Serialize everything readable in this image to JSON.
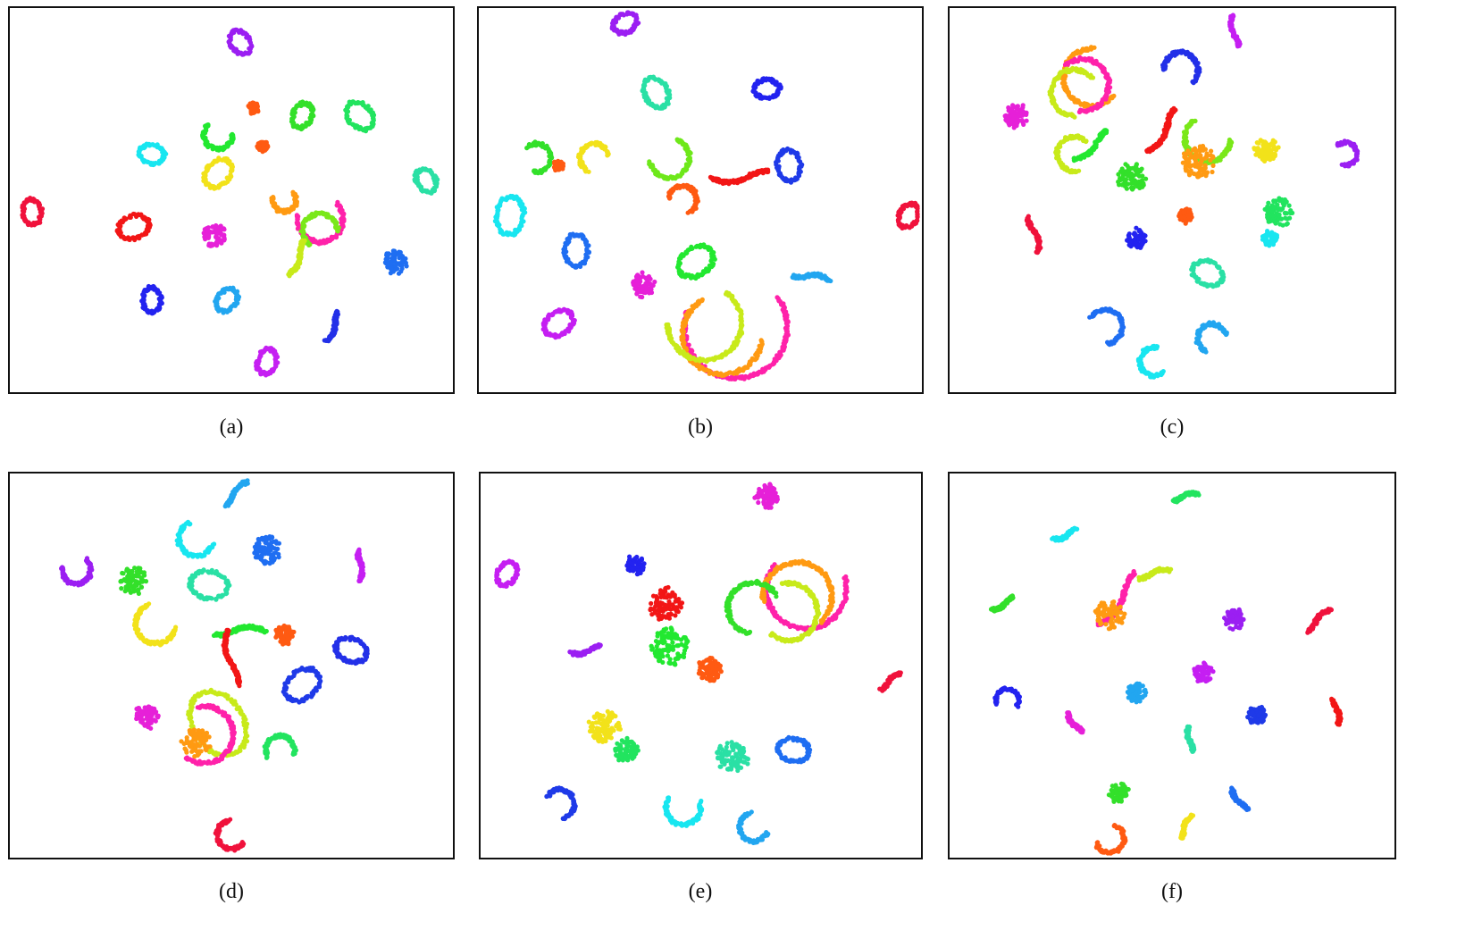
{
  "figure": {
    "captions": [
      "(a)",
      "(b)",
      "(c)",
      "(d)",
      "(e)",
      "(f)"
    ]
  },
  "chart_data": [
    {
      "type": "scatter",
      "label": "(a)",
      "xlim": [
        0,
        100
      ],
      "ylim": [
        0,
        100
      ],
      "grid": false,
      "clusters": [
        {
          "color": "#9b1ff2",
          "x": 52,
          "y": 91,
          "shape": "ring",
          "size": 4
        },
        {
          "color": "#22e45f",
          "x": 79,
          "y": 72,
          "shape": "ring",
          "size": 5
        },
        {
          "color": "#33e02a",
          "x": 66,
          "y": 72,
          "shape": "ring",
          "size": 4
        },
        {
          "color": "#22e830",
          "x": 47,
          "y": 67,
          "shape": "arc",
          "size": 5
        },
        {
          "color": "#ff5a12",
          "x": 55,
          "y": 74,
          "shape": "blob",
          "size": 2
        },
        {
          "color": "#ff5a12",
          "x": 57,
          "y": 64,
          "shape": "blob",
          "size": 2
        },
        {
          "color": "#18e6f0",
          "x": 32,
          "y": 62,
          "shape": "ring",
          "size": 4
        },
        {
          "color": "#f2e21a",
          "x": 47,
          "y": 57,
          "shape": "ring",
          "size": 5
        },
        {
          "color": "#2ae0a5",
          "x": 94,
          "y": 55,
          "shape": "ring",
          "size": 4
        },
        {
          "color": "#f0123c",
          "x": 5,
          "y": 47,
          "shape": "ring",
          "size": 4
        },
        {
          "color": "#f21616",
          "x": 28,
          "y": 43,
          "shape": "ring",
          "size": 5
        },
        {
          "color": "#ff9a12",
          "x": 62,
          "y": 50,
          "shape": "arc",
          "size": 4
        },
        {
          "color": "#ff22aa",
          "x": 70,
          "y": 45,
          "shape": "arc",
          "size": 8
        },
        {
          "color": "#7ae81a",
          "x": 70,
          "y": 42,
          "shape": "arc",
          "size": 6
        },
        {
          "color": "#c8ea1a",
          "x": 65,
          "y": 35,
          "shape": "line",
          "size": 6
        },
        {
          "color": "#e620d8",
          "x": 46,
          "y": 41,
          "shape": "blob",
          "size": 5
        },
        {
          "color": "#1f6ef2",
          "x": 87,
          "y": 34,
          "shape": "blob",
          "size": 5
        },
        {
          "color": "#2323f0",
          "x": 32,
          "y": 24,
          "shape": "ring",
          "size": 4
        },
        {
          "color": "#22a6f0",
          "x": 49,
          "y": 24,
          "shape": "ring",
          "size": 4
        },
        {
          "color": "#2330e8",
          "x": 73,
          "y": 17,
          "shape": "line",
          "size": 5
        },
        {
          "color": "#c51ff2",
          "x": 58,
          "y": 8,
          "shape": "ring",
          "size": 4
        }
      ]
    },
    {
      "type": "scatter",
      "label": "(b)",
      "xlim": [
        0,
        100
      ],
      "ylim": [
        0,
        100
      ],
      "grid": false,
      "clusters": [
        {
          "color": "#9b1ff2",
          "x": 33,
          "y": 96,
          "shape": "ring",
          "size": 4
        },
        {
          "color": "#2ae0a5",
          "x": 40,
          "y": 78,
          "shape": "ring",
          "size": 5
        },
        {
          "color": "#2323f0",
          "x": 65,
          "y": 79,
          "shape": "ring",
          "size": 4
        },
        {
          "color": "#33e02a",
          "x": 13,
          "y": 61,
          "shape": "arc",
          "size": 5
        },
        {
          "color": "#ff5a12",
          "x": 18,
          "y": 59,
          "shape": "blob",
          "size": 2
        },
        {
          "color": "#f2e21a",
          "x": 26,
          "y": 61,
          "shape": "arc",
          "size": 5
        },
        {
          "color": "#6ee81a",
          "x": 43,
          "y": 61,
          "shape": "arc",
          "size": 7
        },
        {
          "color": "#ff5a12",
          "x": 46,
          "y": 50,
          "shape": "arc",
          "size": 5
        },
        {
          "color": "#f21616",
          "x": 59,
          "y": 56,
          "shape": "line",
          "size": 9
        },
        {
          "color": "#1f3ae8",
          "x": 70,
          "y": 59,
          "shape": "ring",
          "size": 5
        },
        {
          "color": "#f0123c",
          "x": 97,
          "y": 46,
          "shape": "ring",
          "size": 4
        },
        {
          "color": "#18e6f0",
          "x": 7,
          "y": 46,
          "shape": "ring",
          "size": 6
        },
        {
          "color": "#1f6ef2",
          "x": 22,
          "y": 37,
          "shape": "ring",
          "size": 5
        },
        {
          "color": "#e620d8",
          "x": 37,
          "y": 28,
          "shape": "blob",
          "size": 5
        },
        {
          "color": "#22e830",
          "x": 49,
          "y": 34,
          "shape": "ring",
          "size": 6
        },
        {
          "color": "#ff22aa",
          "x": 58,
          "y": 17,
          "shape": "arc",
          "size": 18
        },
        {
          "color": "#ff9a12",
          "x": 55,
          "y": 15,
          "shape": "arc",
          "size": 14
        },
        {
          "color": "#c8ea1a",
          "x": 51,
          "y": 18,
          "shape": "arc",
          "size": 13
        },
        {
          "color": "#22a6f0",
          "x": 75,
          "y": 30,
          "shape": "line",
          "size": 6
        },
        {
          "color": "#c51ff2",
          "x": 18,
          "y": 18,
          "shape": "ring",
          "size": 5
        }
      ]
    },
    {
      "type": "scatter",
      "label": "(c)",
      "xlim": [
        0,
        100
      ],
      "ylim": [
        0,
        100
      ],
      "grid": false,
      "clusters": [
        {
          "color": "#c51ff2",
          "x": 64,
          "y": 94,
          "shape": "line",
          "size": 5
        },
        {
          "color": "#ff9a12",
          "x": 32,
          "y": 82,
          "shape": "arc",
          "size": 10
        },
        {
          "color": "#ff22aa",
          "x": 30,
          "y": 80,
          "shape": "arc",
          "size": 9
        },
        {
          "color": "#c8ea1a",
          "x": 28,
          "y": 78,
          "shape": "arc",
          "size": 8
        },
        {
          "color": "#2330e8",
          "x": 52,
          "y": 84,
          "shape": "arc",
          "size": 6
        },
        {
          "color": "#e620d8",
          "x": 15,
          "y": 72,
          "shape": "blob",
          "size": 5
        },
        {
          "color": "#f21616",
          "x": 48,
          "y": 68,
          "shape": "line",
          "size": 8
        },
        {
          "color": "#7ae81a",
          "x": 58,
          "y": 66,
          "shape": "arc",
          "size": 8
        },
        {
          "color": "#ff9a12",
          "x": 56,
          "y": 60,
          "shape": "blob",
          "size": 7
        },
        {
          "color": "#f2e21a",
          "x": 71,
          "y": 63,
          "shape": "blob",
          "size": 5
        },
        {
          "color": "#9b1ff2",
          "x": 89,
          "y": 62,
          "shape": "arc",
          "size": 4
        },
        {
          "color": "#c8ea1a",
          "x": 28,
          "y": 62,
          "shape": "arc",
          "size": 6
        },
        {
          "color": "#22e830",
          "x": 32,
          "y": 64,
          "shape": "line",
          "size": 7
        },
        {
          "color": "#33e02a",
          "x": 41,
          "y": 56,
          "shape": "blob",
          "size": 6
        },
        {
          "color": "#22e45f",
          "x": 74,
          "y": 47,
          "shape": "blob",
          "size": 6
        },
        {
          "color": "#18e6f0",
          "x": 72,
          "y": 40,
          "shape": "blob",
          "size": 3
        },
        {
          "color": "#ff5a12",
          "x": 53,
          "y": 46,
          "shape": "blob",
          "size": 3
        },
        {
          "color": "#f0123c",
          "x": 19,
          "y": 41,
          "shape": "line",
          "size": 6
        },
        {
          "color": "#2323f0",
          "x": 42,
          "y": 40,
          "shape": "blob",
          "size": 4
        },
        {
          "color": "#2ae0a5",
          "x": 58,
          "y": 31,
          "shape": "ring",
          "size": 5
        },
        {
          "color": "#1f6ef2",
          "x": 35,
          "y": 17,
          "shape": "arc",
          "size": 6
        },
        {
          "color": "#18e6f0",
          "x": 46,
          "y": 8,
          "shape": "arc",
          "size": 5
        },
        {
          "color": "#22a6f0",
          "x": 59,
          "y": 14,
          "shape": "arc",
          "size": 5
        }
      ]
    },
    {
      "type": "scatter",
      "label": "(d)",
      "xlim": [
        0,
        100
      ],
      "ylim": [
        0,
        100
      ],
      "grid": false,
      "clusters": [
        {
          "color": "#22a6f0",
          "x": 51,
          "y": 95,
          "shape": "line",
          "size": 5
        },
        {
          "color": "#18e6f0",
          "x": 42,
          "y": 83,
          "shape": "arc",
          "size": 6
        },
        {
          "color": "#1f6ef2",
          "x": 58,
          "y": 80,
          "shape": "blob",
          "size": 6
        },
        {
          "color": "#9b1ff2",
          "x": 15,
          "y": 75,
          "shape": "arc",
          "size": 5
        },
        {
          "color": "#c51ff2",
          "x": 79,
          "y": 76,
          "shape": "line",
          "size": 5
        },
        {
          "color": "#2ae0a5",
          "x": 45,
          "y": 71,
          "shape": "ring",
          "size": 6
        },
        {
          "color": "#33e02a",
          "x": 28,
          "y": 72,
          "shape": "blob",
          "size": 6
        },
        {
          "color": "#f2e21a",
          "x": 33,
          "y": 61,
          "shape": "arc",
          "size": 7
        },
        {
          "color": "#22e830",
          "x": 52,
          "y": 59,
          "shape": "line",
          "size": 8
        },
        {
          "color": "#ff5a12",
          "x": 62,
          "y": 58,
          "shape": "blob",
          "size": 4
        },
        {
          "color": "#f21616",
          "x": 50,
          "y": 52,
          "shape": "line",
          "size": 9
        },
        {
          "color": "#2330e8",
          "x": 77,
          "y": 54,
          "shape": "ring",
          "size": 5
        },
        {
          "color": "#1f3ae8",
          "x": 66,
          "y": 45,
          "shape": "ring",
          "size": 6
        },
        {
          "color": "#e620d8",
          "x": 31,
          "y": 37,
          "shape": "blob",
          "size": 5
        },
        {
          "color": "#c8ea1a",
          "x": 47,
          "y": 35,
          "shape": "ring",
          "size": 11
        },
        {
          "color": "#ff22aa",
          "x": 44,
          "y": 32,
          "shape": "arc",
          "size": 10
        },
        {
          "color": "#ff9a12",
          "x": 42,
          "y": 30,
          "shape": "blob",
          "size": 6
        },
        {
          "color": "#22e45f",
          "x": 61,
          "y": 28,
          "shape": "arc",
          "size": 5
        },
        {
          "color": "#f0123c",
          "x": 50,
          "y": 6,
          "shape": "arc",
          "size": 5
        }
      ]
    },
    {
      "type": "scatter",
      "label": "(e)",
      "xlim": [
        0,
        100
      ],
      "ylim": [
        0,
        100
      ],
      "grid": false,
      "clusters": [
        {
          "color": "#e620d8",
          "x": 65,
          "y": 94,
          "shape": "blob",
          "size": 5
        },
        {
          "color": "#c51ff2",
          "x": 6,
          "y": 74,
          "shape": "ring",
          "size": 4
        },
        {
          "color": "#2323f0",
          "x": 35,
          "y": 76,
          "shape": "blob",
          "size": 4
        },
        {
          "color": "#ff22aa",
          "x": 74,
          "y": 70,
          "shape": "arc",
          "size": 14
        },
        {
          "color": "#ff9a12",
          "x": 72,
          "y": 68,
          "shape": "arc",
          "size": 12
        },
        {
          "color": "#c8ea1a",
          "x": 70,
          "y": 64,
          "shape": "arc",
          "size": 10
        },
        {
          "color": "#33e02a",
          "x": 62,
          "y": 65,
          "shape": "arc",
          "size": 9
        },
        {
          "color": "#f21616",
          "x": 42,
          "y": 66,
          "shape": "blob",
          "size": 7
        },
        {
          "color": "#22e830",
          "x": 43,
          "y": 55,
          "shape": "blob",
          "size": 8
        },
        {
          "color": "#9b1ff2",
          "x": 24,
          "y": 54,
          "shape": "line",
          "size": 5
        },
        {
          "color": "#ff5a12",
          "x": 52,
          "y": 49,
          "shape": "blob",
          "size": 5
        },
        {
          "color": "#f0123c",
          "x": 93,
          "y": 46,
          "shape": "line",
          "size": 4
        },
        {
          "color": "#f2e21a",
          "x": 28,
          "y": 34,
          "shape": "blob",
          "size": 7
        },
        {
          "color": "#22e45f",
          "x": 33,
          "y": 28,
          "shape": "blob",
          "size": 5
        },
        {
          "color": "#2ae0a5",
          "x": 57,
          "y": 26,
          "shape": "blob",
          "size": 7
        },
        {
          "color": "#1f6ef2",
          "x": 71,
          "y": 28,
          "shape": "ring",
          "size": 5
        },
        {
          "color": "#18e6f0",
          "x": 46,
          "y": 13,
          "shape": "arc",
          "size": 6
        },
        {
          "color": "#1f3ae8",
          "x": 18,
          "y": 14,
          "shape": "arc",
          "size": 5
        },
        {
          "color": "#22a6f0",
          "x": 62,
          "y": 8,
          "shape": "arc",
          "size": 5
        }
      ]
    },
    {
      "type": "scatter",
      "label": "(f)",
      "xlim": [
        0,
        100
      ],
      "ylim": [
        0,
        100
      ],
      "grid": false,
      "clusters": [
        {
          "color": "#22e45f",
          "x": 53,
          "y": 94,
          "shape": "line",
          "size": 4
        },
        {
          "color": "#18e6f0",
          "x": 26,
          "y": 84,
          "shape": "line",
          "size": 4
        },
        {
          "color": "#c8ea1a",
          "x": 46,
          "y": 74,
          "shape": "line",
          "size": 5
        },
        {
          "color": "#ff22aa",
          "x": 38,
          "y": 67,
          "shape": "line",
          "size": 10
        },
        {
          "color": "#ff9a12",
          "x": 36,
          "y": 63,
          "shape": "blob",
          "size": 6
        },
        {
          "color": "#33e02a",
          "x": 12,
          "y": 66,
          "shape": "line",
          "size": 4
        },
        {
          "color": "#9b1ff2",
          "x": 64,
          "y": 62,
          "shape": "blob",
          "size": 4
        },
        {
          "color": "#f0123c",
          "x": 83,
          "y": 62,
          "shape": "line",
          "size": 5
        },
        {
          "color": "#2323f0",
          "x": 13,
          "y": 41,
          "shape": "arc",
          "size": 4
        },
        {
          "color": "#22a6f0",
          "x": 42,
          "y": 43,
          "shape": "blob",
          "size": 4
        },
        {
          "color": "#c51ff2",
          "x": 57,
          "y": 48,
          "shape": "blob",
          "size": 4
        },
        {
          "color": "#e620d8",
          "x": 28,
          "y": 35,
          "shape": "line",
          "size": 4
        },
        {
          "color": "#1f3ae8",
          "x": 69,
          "y": 37,
          "shape": "blob",
          "size": 4
        },
        {
          "color": "#f21616",
          "x": 87,
          "y": 38,
          "shape": "line",
          "size": 4
        },
        {
          "color": "#2ae0a5",
          "x": 54,
          "y": 31,
          "shape": "line",
          "size": 4
        },
        {
          "color": "#33e02a",
          "x": 38,
          "y": 17,
          "shape": "blob",
          "size": 4
        },
        {
          "color": "#1f6ef2",
          "x": 65,
          "y": 15,
          "shape": "line",
          "size": 4
        },
        {
          "color": "#f2e21a",
          "x": 53,
          "y": 8,
          "shape": "line",
          "size": 4
        },
        {
          "color": "#ff5a12",
          "x": 36,
          "y": 5,
          "shape": "arc",
          "size": 5
        }
      ]
    }
  ]
}
